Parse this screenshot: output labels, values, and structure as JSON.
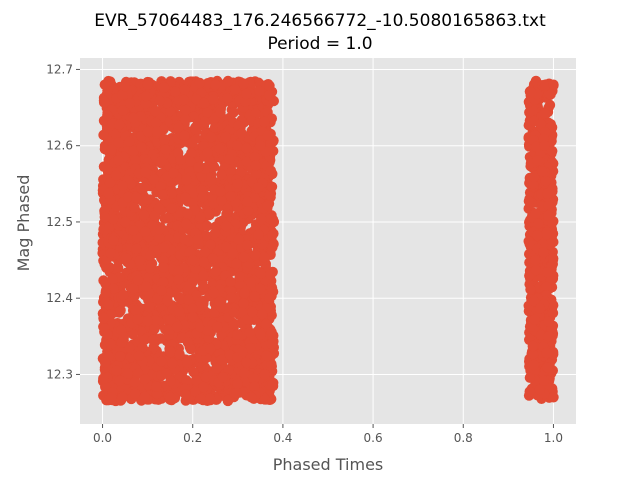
{
  "chart_data": {
    "type": "scatter",
    "title_line1": "EVR_57064483_176.246566772_-10.5080165863.txt",
    "title_line2": "Period = 1.0",
    "xlabel": "Phased Times",
    "ylabel": "Mag Phased",
    "xlim": [
      -0.05,
      1.05
    ],
    "ylim": [
      12.235,
      12.715
    ],
    "xticks": [
      0.0,
      0.2,
      0.4,
      0.6,
      0.8,
      1.0
    ],
    "xtick_labels": [
      "0.0",
      "0.2",
      "0.4",
      "0.6",
      "0.8",
      "1.0"
    ],
    "yticks": [
      12.3,
      12.4,
      12.5,
      12.6,
      12.7
    ],
    "ytick_labels": [
      "12.3",
      "12.4",
      "12.5",
      "12.6",
      "12.7"
    ],
    "grid": true,
    "style": "ggplot",
    "colors": {
      "plot_bg": "#E5E5E5",
      "grid": "#FFFFFF",
      "marker": "#E24A33",
      "tick_text": "#555555"
    },
    "series": [
      {
        "x_ranges": [
          [
            0.0,
            0.38
          ],
          [
            0.945,
            1.0
          ]
        ],
        "y_range": [
          12.265,
          12.685
        ],
        "points": [
          [
            0.005,
            12.68
          ],
          [
            0.02,
            12.27
          ],
          [
            0.05,
            12.5
          ],
          [
            0.1,
            12.68
          ],
          [
            0.15,
            12.27
          ],
          [
            0.18,
            12.66
          ],
          [
            0.2,
            12.45
          ],
          [
            0.25,
            12.68
          ],
          [
            0.3,
            12.55
          ],
          [
            0.33,
            12.27
          ],
          [
            0.35,
            12.6
          ],
          [
            0.37,
            12.4
          ],
          [
            0.38,
            12.5
          ],
          [
            0.375,
            12.34
          ],
          [
            0.36,
            12.3
          ],
          [
            0.95,
            12.67
          ],
          [
            0.96,
            12.45
          ],
          [
            0.97,
            12.28
          ],
          [
            0.98,
            12.6
          ],
          [
            0.99,
            12.35
          ],
          [
            1.0,
            12.68
          ],
          [
            1.0,
            12.27
          ]
        ]
      }
    ]
  }
}
